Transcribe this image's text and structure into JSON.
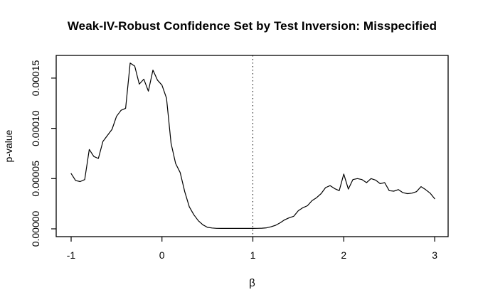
{
  "chart_data": {
    "type": "line",
    "title": "Weak-IV-Robust Confidence Set by Test Inversion: Misspecified",
    "xlabel": "β",
    "ylabel": "p-value",
    "xlim": [
      -1.164,
      3.148
    ],
    "ylim": [
      -7.8e-06,
      0.0001726
    ],
    "x_ticks": [
      -1,
      0,
      1,
      2,
      3
    ],
    "x_tick_labels": [
      "-1",
      "0",
      "1",
      "2",
      "3"
    ],
    "y_ticks": [
      0.0,
      5e-05,
      0.0001,
      0.00015
    ],
    "y_tick_labels": [
      "0.00000",
      "0.00005",
      "0.00010",
      "0.00015"
    ],
    "grid": "off",
    "legend": "none",
    "line_color": "#000000",
    "background_color": "#ffffff",
    "reference_line": {
      "x": 1,
      "style": "dotted",
      "color": "#000000"
    },
    "x": [
      -1,
      -0.95,
      -0.9,
      -0.85,
      -0.8,
      -0.75,
      -0.7,
      -0.65,
      -0.6,
      -0.55,
      -0.5,
      -0.45,
      -0.4,
      -0.35,
      -0.3,
      -0.25,
      -0.2,
      -0.15,
      -0.1,
      -0.05,
      0,
      0.05,
      0.1,
      0.15,
      0.2,
      0.25,
      0.3,
      0.35,
      0.4,
      0.45,
      0.5,
      0.55,
      0.6,
      0.65,
      0.7,
      0.75,
      0.8,
      0.85,
      0.9,
      0.95,
      1,
      1.05,
      1.1,
      1.15,
      1.2,
      1.25,
      1.3,
      1.35,
      1.4,
      1.45,
      1.5,
      1.55,
      1.6,
      1.65,
      1.7,
      1.75,
      1.8,
      1.85,
      1.9,
      1.95,
      2,
      2.05,
      2.1,
      2.15,
      2.2,
      2.25,
      2.3,
      2.35,
      2.4,
      2.45,
      2.5,
      2.55,
      2.6,
      2.65,
      2.7,
      2.75,
      2.8,
      2.85,
      2.9,
      2.95,
      3
    ],
    "y": [
      5.5e-05,
      4.8e-05,
      4.7e-05,
      4.9e-05,
      7.9e-05,
      7.2e-05,
      7e-05,
      8.7e-05,
      9.3e-05,
      9.9e-05,
      0.000112,
      0.000118,
      0.00012,
      0.000165,
      0.000162,
      0.000144,
      0.000149,
      0.000137,
      0.000158,
      0.000148,
      0.000143,
      0.00013,
      8.5e-05,
      6.5e-05,
      5.6e-05,
      3.7e-05,
      2.2e-05,
      1.4e-05,
      8e-06,
      4e-06,
      1.5e-06,
      8e-07,
      5e-07,
      4e-07,
      4e-07,
      4e-07,
      4e-07,
      4e-07,
      4e-07,
      4e-07,
      4e-07,
      5e-07,
      6e-07,
      1e-06,
      2e-06,
      3.5e-06,
      6e-06,
      9e-06,
      1.1e-05,
      1.25e-05,
      1.8e-05,
      2.1e-05,
      2.3e-05,
      2.8e-05,
      3.1e-05,
      3.5e-05,
      4.1e-05,
      4.3e-05,
      4e-05,
      3.8e-05,
      5.45e-05,
      3.95e-05,
      4.9e-05,
      5e-05,
      4.9e-05,
      4.6e-05,
      5e-05,
      4.85e-05,
      4.5e-05,
      4.6e-05,
      3.8e-05,
      3.75e-05,
      3.9e-05,
      3.6e-05,
      3.5e-05,
      3.55e-05,
      3.7e-05,
      4.2e-05,
      3.9e-05,
      3.55e-05,
      3e-05
    ]
  }
}
